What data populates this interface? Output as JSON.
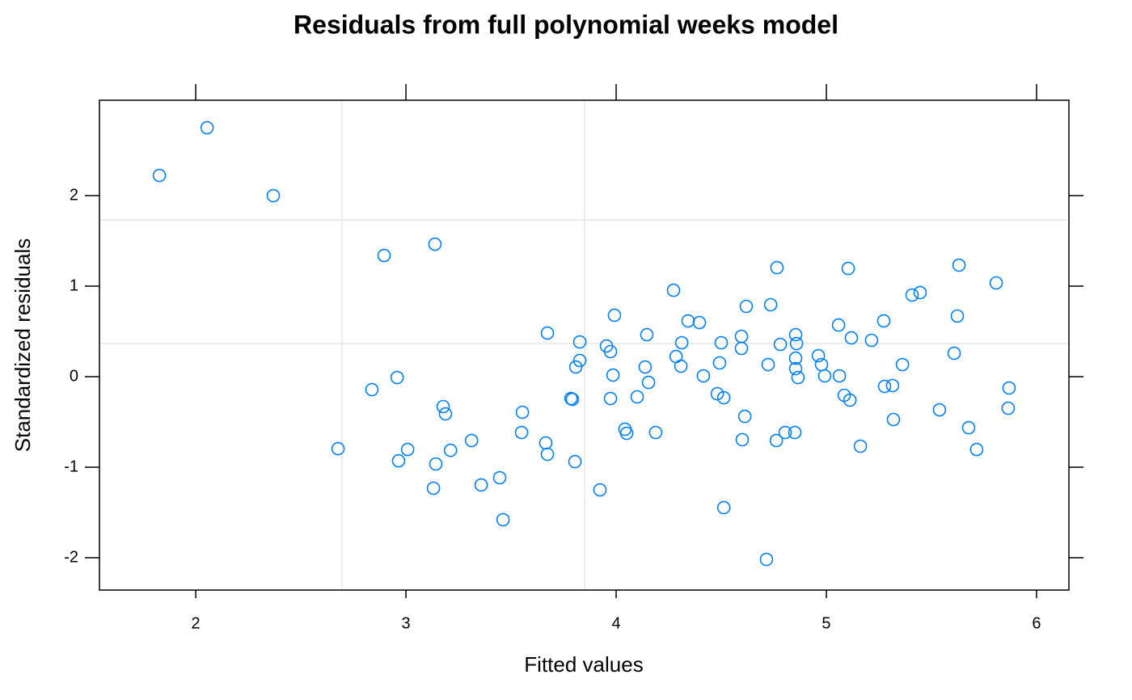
{
  "chart_data": {
    "type": "scatter",
    "title": "Residuals from full polynomial weeks model",
    "x_label": "Fitted values",
    "y_label": "Standardized residuals",
    "color": "#0080ff",
    "xlim": [
      1.542,
      6.154
    ],
    "ylim": [
      -2.357,
      3.054
    ],
    "xticks": [
      2,
      3,
      4,
      5,
      6
    ],
    "yticks": [
      -2,
      -1,
      0,
      1,
      2
    ],
    "reference_lines": {
      "x": [
        2.696,
        3.85
      ],
      "y": [
        0.366,
        1.732
      ],
      "color": "#e6e6e6"
    },
    "series": [
      {
        "name": "residuals",
        "color": "#0080ff",
        "x": [
          1.827,
          2.054,
          2.369,
          2.896,
          3.138,
          2.677,
          2.838,
          2.958,
          3.008,
          2.965,
          3.142,
          3.131,
          3.177,
          3.188,
          3.212,
          3.312,
          3.358,
          3.446,
          3.462,
          3.554,
          3.55,
          3.673,
          3.665,
          3.673,
          3.785,
          3.792,
          3.827,
          3.827,
          3.808,
          3.804,
          3.923,
          3.954,
          3.973,
          3.992,
          3.985,
          3.973,
          4.1,
          4.042,
          4.05,
          4.146,
          4.138,
          4.154,
          4.188,
          4.273,
          4.285,
          4.312,
          4.308,
          4.342,
          4.396,
          4.415,
          4.481,
          4.512,
          4.5,
          4.492,
          4.512,
          4.596,
          4.596,
          4.619,
          4.612,
          4.6,
          4.723,
          4.735,
          4.765,
          4.781,
          4.762,
          4.804,
          4.715,
          4.85,
          4.854,
          4.858,
          4.854,
          4.854,
          4.865,
          4.962,
          4.977,
          4.992,
          5.058,
          5.062,
          5.085,
          5.112,
          5.104,
          5.119,
          5.162,
          5.215,
          5.273,
          5.277,
          5.315,
          5.319,
          5.362,
          5.408,
          5.446,
          5.538,
          5.608,
          5.631,
          5.623,
          5.677,
          5.715,
          5.808,
          5.869,
          5.865
        ],
        "values": [
          2.223,
          2.75,
          2.0,
          1.339,
          1.464,
          -0.795,
          -0.143,
          -0.009,
          -0.804,
          -0.929,
          -0.964,
          -1.232,
          -0.33,
          -0.411,
          -0.813,
          -0.705,
          -1.196,
          -1.116,
          -1.58,
          -0.393,
          -0.616,
          0.482,
          -0.732,
          -0.857,
          -0.241,
          -0.25,
          0.384,
          0.179,
          0.107,
          -0.938,
          -1.25,
          0.339,
          0.277,
          0.679,
          0.018,
          -0.241,
          -0.223,
          -0.58,
          -0.625,
          0.464,
          0.107,
          -0.063,
          -0.616,
          0.955,
          0.223,
          0.375,
          0.116,
          0.616,
          0.598,
          0.009,
          -0.188,
          -0.232,
          0.375,
          0.152,
          -1.446,
          0.446,
          0.313,
          0.777,
          -0.438,
          -0.696,
          0.134,
          0.795,
          1.205,
          0.357,
          -0.705,
          -0.616,
          -2.018,
          -0.616,
          0.464,
          0.366,
          0.205,
          0.089,
          -0.009,
          0.232,
          0.134,
          0.009,
          0.571,
          0.009,
          -0.205,
          -0.259,
          1.196,
          0.429,
          -0.768,
          0.402,
          0.616,
          -0.107,
          -0.098,
          -0.473,
          0.134,
          0.902,
          0.929,
          -0.366,
          0.259,
          1.232,
          0.67,
          -0.563,
          -0.804,
          1.036,
          -0.125,
          -0.348
        ]
      }
    ]
  }
}
